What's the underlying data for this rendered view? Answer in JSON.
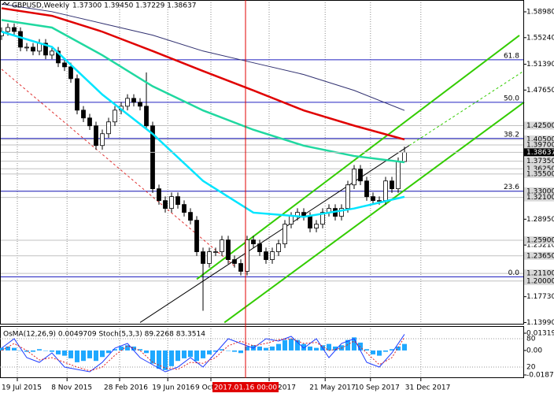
{
  "chart_data": {
    "type": "candlestick",
    "symbol": "GBPUSD,Weekly",
    "ohlc_label": "1.37300 1.39450 1.37229 1.38637",
    "ylim": [
      1.137,
      1.6069
    ],
    "open": [
      1.555,
      1.5613,
      1.567,
      1.5613,
      1.5386,
      1.5386,
      1.5329,
      1.5443,
      1.5272,
      1.5329,
      1.5158,
      1.5101,
      1.493,
      1.4474,
      1.4361,
      1.4247,
      1.3962,
      1.4133,
      1.4304,
      1.4474,
      1.4531,
      1.4645,
      1.4588,
      1.4531,
      1.4247,
      1.3336,
      1.3165,
      1.3051,
      1.3222,
      1.3108,
      1.2994,
      1.288,
      1.2424,
      1.2254,
      1.2424,
      1.2424,
      1.2595,
      1.231,
      1.2254,
      1.214,
      1.2595,
      1.2538,
      1.2424,
      1.231,
      1.2424,
      1.2538,
      1.2823,
      1.2937,
      1.2994,
      1.2937,
      1.2766,
      1.2823,
      1.2994,
      1.3051,
      1.2937,
      1.3051,
      1.3392,
      1.362,
      1.3449,
      1.3222,
      1.3165,
      1.3165,
      1.3449,
      1.3336,
      1.373
    ],
    "high": [
      1.5673,
      1.573,
      1.573,
      1.5673,
      1.5446,
      1.5446,
      1.5503,
      1.5503,
      1.5389,
      1.5389,
      1.5218,
      1.5161,
      1.499,
      1.4534,
      1.4421,
      1.4307,
      1.4193,
      1.4364,
      1.4534,
      1.4591,
      1.4705,
      1.4705,
      1.4648,
      1.502,
      1.4307,
      1.3396,
      1.3225,
      1.3282,
      1.3282,
      1.3168,
      1.3054,
      1.294,
      1.2484,
      1.2484,
      1.2484,
      1.2655,
      1.2655,
      1.237,
      1.2314,
      1.2655,
      1.2655,
      1.2598,
      1.2484,
      1.2484,
      1.2598,
      1.2883,
      1.2997,
      1.3054,
      1.3054,
      1.2997,
      1.2883,
      1.3054,
      1.3111,
      1.3111,
      1.3111,
      1.3452,
      1.368,
      1.368,
      1.3509,
      1.3282,
      1.3225,
      1.3509,
      1.3509,
      1.379,
      1.3945
    ],
    "low": [
      1.549,
      1.5553,
      1.5553,
      1.5326,
      1.5326,
      1.5269,
      1.5269,
      1.5212,
      1.5212,
      1.5098,
      1.5041,
      1.487,
      1.4414,
      1.4301,
      1.4187,
      1.3902,
      1.3902,
      1.4073,
      1.4244,
      1.4414,
      1.4471,
      1.4528,
      1.4471,
      1.4187,
      1.3276,
      1.3105,
      1.2991,
      1.2991,
      1.3048,
      1.2934,
      1.282,
      1.2364,
      1.157,
      1.2194,
      1.2364,
      1.2364,
      1.225,
      1.2194,
      1.208,
      1.208,
      1.2478,
      1.2364,
      1.225,
      1.225,
      1.2364,
      1.2478,
      1.2763,
      1.2877,
      1.2877,
      1.2706,
      1.2706,
      1.2763,
      1.2934,
      1.2877,
      1.2877,
      1.2991,
      1.3332,
      1.3389,
      1.3162,
      1.3105,
      1.3105,
      1.3105,
      1.3276,
      1.3276,
      1.37229
    ],
    "close": [
      1.5613,
      1.567,
      1.5613,
      1.5386,
      1.5386,
      1.5329,
      1.5443,
      1.5272,
      1.5329,
      1.5158,
      1.5101,
      1.493,
      1.4474,
      1.4361,
      1.4247,
      1.3962,
      1.4133,
      1.4304,
      1.4474,
      1.4531,
      1.4645,
      1.4588,
      1.4531,
      1.4247,
      1.3336,
      1.3165,
      1.3051,
      1.3222,
      1.3108,
      1.2994,
      1.288,
      1.2424,
      1.2254,
      1.2424,
      1.2424,
      1.2595,
      1.231,
      1.2254,
      1.214,
      1.2595,
      1.2538,
      1.2424,
      1.231,
      1.2424,
      1.2538,
      1.2823,
      1.2937,
      1.2994,
      1.2937,
      1.2766,
      1.2823,
      1.2994,
      1.3051,
      1.2937,
      1.3051,
      1.3392,
      1.362,
      1.3449,
      1.3222,
      1.3165,
      1.3165,
      1.3449,
      1.3336,
      1.373,
      1.38637
    ],
    "ma_x": [
      0,
      8,
      16,
      24,
      32,
      40,
      48,
      56,
      64
    ],
    "series": [
      {
        "color": "#303070",
        "values": [
          1.601,
          1.59,
          1.573,
          1.556,
          1.533,
          1.516,
          1.499,
          1.476,
          1.447
        ]
      },
      {
        "color": "#e00000",
        "values": [
          1.595,
          1.584,
          1.561,
          1.533,
          1.504,
          1.476,
          1.447,
          1.425,
          1.405
        ]
      },
      {
        "color": "#20d8a0",
        "values": [
          1.578,
          1.567,
          1.527,
          1.482,
          1.447,
          1.419,
          1.396,
          1.381,
          1.372
        ]
      },
      {
        "color": "#00e5ff",
        "values": [
          1.561,
          1.539,
          1.47,
          1.413,
          1.345,
          1.299,
          1.293,
          1.305,
          1.322
        ]
      }
    ],
    "lines": [
      {
        "color": "#e03030",
        "dash": true,
        "width": 1,
        "x": [
          0,
          37.25
        ],
        "y": [
          1.5067,
          1.2197
        ]
      },
      {
        "color": "#33cc00",
        "dash": false,
        "width": 2,
        "x": [
          31,
          82.25
        ],
        "y": [
          1.2026,
          1.5556
        ]
      },
      {
        "color": "#33cc00",
        "dash": false,
        "width": 2,
        "x": [
          35.4,
          83
        ],
        "y": [
          1.1399,
          1.4588
        ]
      },
      {
        "color": "#000000",
        "dash": false,
        "width": 1,
        "x": [
          22,
          64.75
        ],
        "y": [
          1.1399,
          1.3962
        ]
      },
      {
        "color": "#33cc00",
        "dash": true,
        "width": 1,
        "x": [
          64.75,
          83
        ],
        "y": [
          1.3962,
          1.5044
        ]
      }
    ],
    "yticks": [
      {
        "value": 1.5898,
        "label": "1.58980"
      },
      {
        "value": 1.5524,
        "label": "1.55240"
      },
      {
        "value": 1.5139,
        "label": "1.51390"
      },
      {
        "value": 1.4765,
        "label": "1.47650"
      },
      {
        "value": 1.2895,
        "label": "1.28950"
      },
      {
        "value": 1.2521,
        "label": "1.25210"
      },
      {
        "value": 1.1773,
        "label": "1.17730"
      },
      {
        "value": 1.1399,
        "label": "1.13990"
      }
    ],
    "levels": [
      {
        "value": 1.425,
        "label": "1.42500"
      },
      {
        "value": 1.405,
        "label": "1.40500"
      },
      {
        "value": 1.397,
        "label": "1.39700"
      },
      {
        "value": 1.3735,
        "label": "1.37350"
      },
      {
        "value": 1.3625,
        "label": "1.36250"
      },
      {
        "value": 1.355,
        "label": "1.35500"
      },
      {
        "value": 1.33,
        "label": "1.33000"
      },
      {
        "value": 1.321,
        "label": "1.32100"
      },
      {
        "value": 1.259,
        "label": "1.25900"
      },
      {
        "value": 1.2365,
        "label": "1.23650"
      },
      {
        "value": 1.211,
        "label": "1.21100"
      },
      {
        "value": 1.2,
        "label": "1.20000"
      }
    ],
    "fib_levels": [
      {
        "value": 1.5203,
        "label": "61.8"
      },
      {
        "value": 1.4588,
        "label": "50.0"
      },
      {
        "value": 1.4064,
        "label": "38.2"
      },
      {
        "value": 1.3301,
        "label": "23.6"
      },
      {
        "value": 1.206,
        "label": "0.0"
      }
    ],
    "last_price": {
      "value": 1.38637,
      "label": "1.38637"
    },
    "xticks": [
      {
        "value": 2.5,
        "label": "19 Jul 2015"
      },
      {
        "value": 10.4,
        "label": "8 Nov 2015"
      },
      {
        "value": 18.75,
        "label": "28 Feb 2016"
      },
      {
        "value": 26.4,
        "label": "19 Jun 2016"
      },
      {
        "value": 33.25,
        "label": "9 Oct 2016"
      },
      {
        "value": 42.5,
        "label": "29 Jan 2017"
      },
      {
        "value": 51.4,
        "label": "21 May 2017"
      },
      {
        "value": 58.6,
        "label": "10 Sep 2017"
      },
      {
        "value": 66.6,
        "label": "31 Dec 2017"
      }
    ],
    "cursor": {
      "value": 38.75,
      "label": "2017.01.16 00:00"
    },
    "indicator": {
      "label": "OsMA(12,26,9) 0.0049709  Stoch(5,3,3) 89.2268 83.3514",
      "ylim": [
        -0.0199,
        0.0162
      ],
      "yticks": [
        0.013194,
        {
          "value": 0,
          "label": "0.00"
        },
        -0.018707
      ],
      "osma": [
        0.002,
        0.003,
        0.002,
        0,
        -0.001,
        -0.001,
        0.001,
        0,
        -0.001,
        -0.003,
        -0.004,
        -0.006,
        -0.009,
        -0.008,
        -0.006,
        -0.008,
        -0.005,
        -0.002,
        0.001,
        0.003,
        0.004,
        0.003,
        0.001,
        -0.002,
        -0.01,
        -0.014,
        -0.015,
        -0.012,
        -0.008,
        -0.006,
        -0.005,
        -0.008,
        -0.006,
        -0.003,
        -0.001,
        0.001,
        0,
        -0.001,
        -0.002,
        0.003,
        0.004,
        0.003,
        0.002,
        0.003,
        0.005,
        0.008,
        0.009,
        0.008,
        0.005,
        0.003,
        0.002,
        0.004,
        0.005,
        0.003,
        0.004,
        0.008,
        0.01,
        0.006,
        0.001,
        -0.003,
        -0.004,
        -0.001,
        0.001,
        0.003,
        0.0049709
      ],
      "osma_color": "#1fa8ff",
      "stoch_lim": [
        0,
        100
      ],
      "stoch_levels": [
        80,
        20
      ],
      "stoch_x": [
        0,
        2,
        4,
        6,
        8,
        10,
        12,
        14,
        16,
        18,
        20,
        22,
        24,
        26,
        28,
        30,
        32,
        34,
        36,
        38,
        40,
        42,
        44,
        46,
        48,
        50,
        52,
        54,
        56,
        58,
        60,
        62,
        64
      ],
      "stoch_main": {
        "color": "#1e3cff",
        "values": [
          60,
          80,
          40,
          30,
          50,
          20,
          15,
          10,
          30,
          60,
          70,
          40,
          25,
          10,
          20,
          40,
          20,
          50,
          80,
          70,
          60,
          80,
          75,
          85,
          60,
          80,
          40,
          70,
          80,
          30,
          20,
          50,
          89.2268
        ]
      },
      "stoch_signal": {
        "color": "#e02020",
        "values": [
          55,
          70,
          55,
          35,
          40,
          30,
          20,
          12,
          20,
          45,
          65,
          55,
          30,
          18,
          15,
          30,
          28,
          40,
          65,
          75,
          65,
          70,
          78,
          80,
          70,
          72,
          55,
          60,
          75,
          50,
          25,
          40,
          83.3514
        ]
      }
    }
  }
}
